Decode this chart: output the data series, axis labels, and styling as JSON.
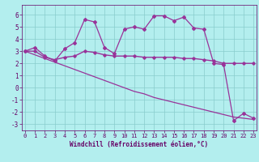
{
  "xlabel": "Windchill (Refroidissement éolien,°C)",
  "bg_color": "#b3eeee",
  "grid_color": "#88cccc",
  "line_color": "#993399",
  "x_ticks": [
    0,
    1,
    2,
    3,
    4,
    5,
    6,
    7,
    8,
    9,
    10,
    11,
    12,
    13,
    14,
    15,
    16,
    17,
    18,
    19,
    20,
    21,
    22,
    23
  ],
  "ylim": [
    -3.5,
    6.8
  ],
  "xlim": [
    -0.3,
    23.3
  ],
  "yticks": [
    -3,
    -2,
    -1,
    0,
    1,
    2,
    3,
    4,
    5,
    6
  ],
  "line1_x": [
    0,
    1,
    2,
    3,
    4,
    5,
    6,
    7,
    8,
    9,
    10,
    11,
    12,
    13,
    14,
    15,
    16,
    17,
    18,
    19,
    20,
    21,
    22,
    23
  ],
  "line1_y": [
    3.0,
    3.3,
    2.6,
    2.2,
    3.2,
    3.7,
    5.6,
    5.4,
    3.3,
    2.8,
    4.8,
    5.0,
    4.8,
    5.9,
    5.9,
    5.5,
    5.8,
    4.9,
    4.8,
    2.0,
    1.9,
    -2.7,
    -2.1,
    -2.5
  ],
  "line2_x": [
    0,
    1,
    2,
    3,
    4,
    5,
    6,
    7,
    8,
    9,
    10,
    11,
    12,
    13,
    14,
    15,
    16,
    17,
    18,
    19,
    20,
    21,
    22,
    23
  ],
  "line2_y": [
    3.0,
    3.0,
    2.5,
    2.3,
    2.5,
    2.6,
    3.0,
    2.9,
    2.7,
    2.6,
    2.6,
    2.6,
    2.5,
    2.5,
    2.5,
    2.5,
    2.4,
    2.4,
    2.3,
    2.2,
    2.0,
    2.0,
    2.0,
    2.0
  ],
  "line3_x": [
    0,
    1,
    2,
    3,
    4,
    5,
    6,
    7,
    8,
    9,
    10,
    11,
    12,
    13,
    14,
    15,
    16,
    17,
    18,
    19,
    20,
    21,
    22,
    23
  ],
  "line3_y": [
    3.0,
    2.7,
    2.4,
    2.1,
    1.8,
    1.5,
    1.2,
    0.9,
    0.6,
    0.3,
    0.0,
    -0.3,
    -0.5,
    -0.8,
    -1.0,
    -1.2,
    -1.4,
    -1.6,
    -1.8,
    -2.0,
    -2.2,
    -2.4,
    -2.5,
    -2.6
  ],
  "xlabel_color": "#660066",
  "tick_color": "#660066",
  "spine_color": "#660066"
}
